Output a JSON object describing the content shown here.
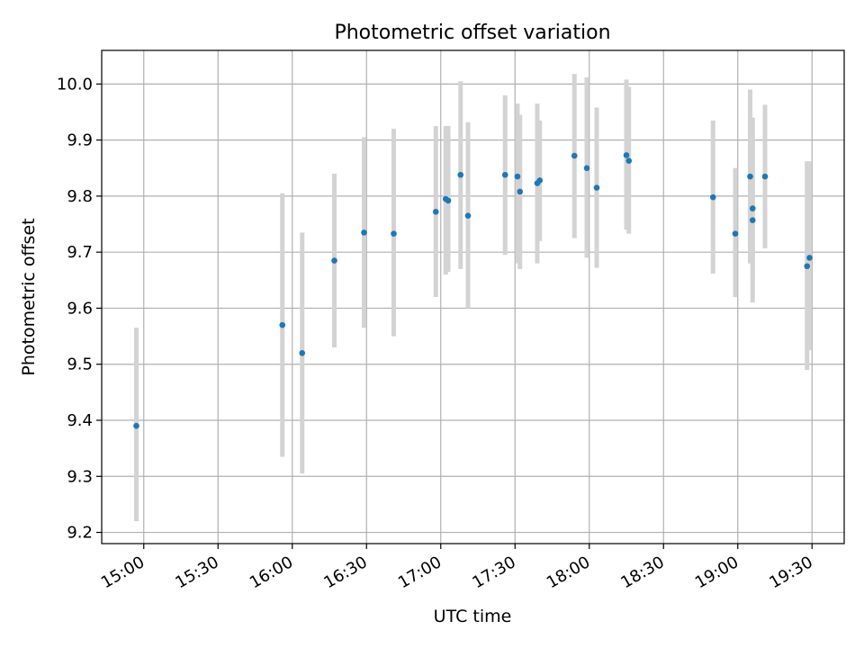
{
  "chart_data": {
    "type": "scatter",
    "title": "Photometric offset variation",
    "xlabel": "UTC time",
    "ylabel": "Photometric offset",
    "xlim": [
      "14:43",
      "19:43"
    ],
    "ylim": [
      9.18,
      10.06
    ],
    "grid": true,
    "x_ticks": [
      "15:00",
      "15:30",
      "16:00",
      "16:30",
      "17:00",
      "17:30",
      "18:00",
      "18:30",
      "19:00",
      "19:30"
    ],
    "y_ticks": [
      "9.2",
      "9.3",
      "9.4",
      "9.5",
      "9.6",
      "9.7",
      "9.8",
      "9.9",
      "10.0"
    ],
    "errorbar_color": "#d3d3d3",
    "point_color": "#1f77b4",
    "points": [
      {
        "x": "14:57",
        "y": 9.39,
        "ylow": 9.22,
        "yhigh": 9.565
      },
      {
        "x": "15:56",
        "y": 9.57,
        "ylow": 9.335,
        "yhigh": 9.805
      },
      {
        "x": "16:04",
        "y": 9.52,
        "ylow": 9.305,
        "yhigh": 9.735
      },
      {
        "x": "16:17",
        "y": 9.685,
        "ylow": 9.53,
        "yhigh": 9.84
      },
      {
        "x": "16:29",
        "y": 9.735,
        "ylow": 9.565,
        "yhigh": 9.905
      },
      {
        "x": "16:41",
        "y": 9.733,
        "ylow": 9.55,
        "yhigh": 9.92
      },
      {
        "x": "16:58",
        "y": 9.772,
        "ylow": 9.62,
        "yhigh": 9.925
      },
      {
        "x": "17:02",
        "y": 9.795,
        "ylow": 9.66,
        "yhigh": 9.925
      },
      {
        "x": "17:03",
        "y": 9.792,
        "ylow": 9.665,
        "yhigh": 9.925
      },
      {
        "x": "17:08",
        "y": 9.838,
        "ylow": 9.67,
        "yhigh": 10.005
      },
      {
        "x": "17:11",
        "y": 9.765,
        "ylow": 9.6,
        "yhigh": 9.932
      },
      {
        "x": "17:26",
        "y": 9.838,
        "ylow": 9.695,
        "yhigh": 9.98
      },
      {
        "x": "17:31",
        "y": 9.835,
        "ylow": 9.68,
        "yhigh": 9.965
      },
      {
        "x": "17:32",
        "y": 9.808,
        "ylow": 9.67,
        "yhigh": 9.945
      },
      {
        "x": "17:39",
        "y": 9.823,
        "ylow": 9.68,
        "yhigh": 9.965
      },
      {
        "x": "17:40",
        "y": 9.828,
        "ylow": 9.72,
        "yhigh": 9.935
      },
      {
        "x": "17:54",
        "y": 9.872,
        "ylow": 9.725,
        "yhigh": 10.018
      },
      {
        "x": "17:59",
        "y": 9.85,
        "ylow": 9.69,
        "yhigh": 10.012
      },
      {
        "x": "18:03",
        "y": 9.815,
        "ylow": 9.672,
        "yhigh": 9.958
      },
      {
        "x": "18:15",
        "y": 9.873,
        "ylow": 9.74,
        "yhigh": 10.008
      },
      {
        "x": "18:16",
        "y": 9.863,
        "ylow": 9.733,
        "yhigh": 9.995
      },
      {
        "x": "18:50",
        "y": 9.798,
        "ylow": 9.662,
        "yhigh": 9.935
      },
      {
        "x": "18:59",
        "y": 9.733,
        "ylow": 9.62,
        "yhigh": 9.85
      },
      {
        "x": "19:05",
        "y": 9.835,
        "ylow": 9.68,
        "yhigh": 9.99
      },
      {
        "x": "19:06",
        "y": 9.778,
        "ylow": 9.655,
        "yhigh": 9.94
      },
      {
        "x": "19:06",
        "y": 9.757,
        "ylow": 9.61,
        "yhigh": 9.9
      },
      {
        "x": "19:11",
        "y": 9.835,
        "ylow": 9.707,
        "yhigh": 9.963
      },
      {
        "x": "19:28",
        "y": 9.675,
        "ylow": 9.49,
        "yhigh": 9.862
      },
      {
        "x": "19:29",
        "y": 9.69,
        "ylow": 9.525,
        "yhigh": 9.862
      }
    ]
  }
}
